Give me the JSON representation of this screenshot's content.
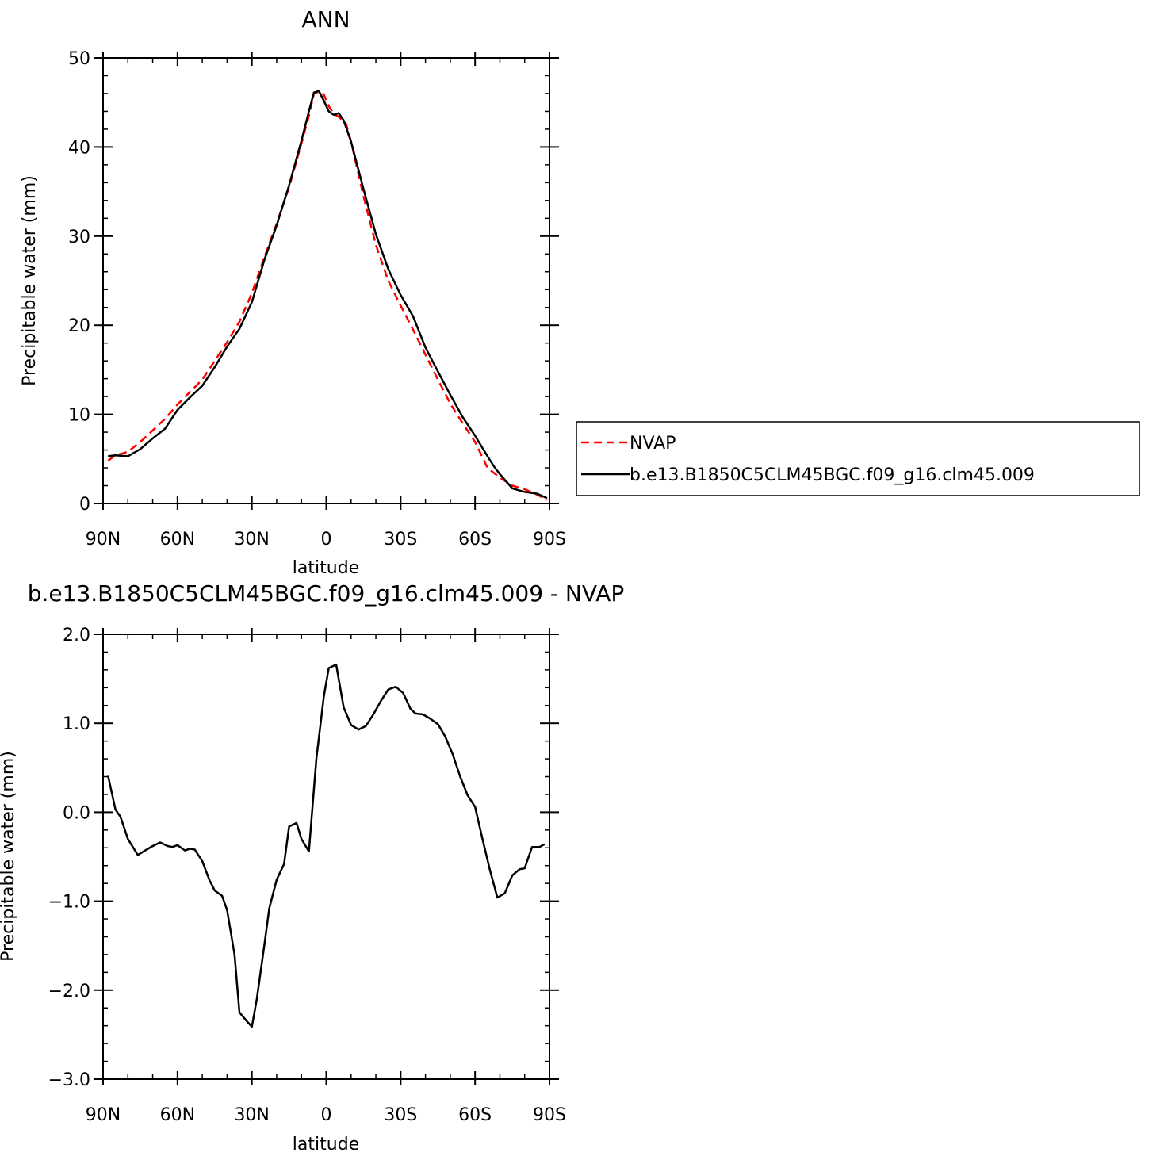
{
  "chart_data": [
    {
      "type": "line",
      "title": "ANN",
      "xlabel": "latitude",
      "ylabel": "Precipitable water (mm)",
      "xlim": [
        90,
        -90
      ],
      "ylim": [
        0,
        50
      ],
      "x_tick_labels": [
        "90N",
        "60N",
        "30N",
        "0",
        "30S",
        "60S",
        "90S"
      ],
      "x_tick_values": [
        90,
        60,
        30,
        0,
        -30,
        -60,
        -90
      ],
      "y_tick_labels": [
        "0",
        "10",
        "20",
        "30",
        "40",
        "50"
      ],
      "y_tick_values": [
        0,
        10,
        20,
        30,
        40,
        50
      ],
      "legend": {
        "placement": "right",
        "entries": [
          {
            "label": "NVAP",
            "style": "dashed",
            "color": "#ff0000"
          },
          {
            "label": "b.e13.B1850C5CLM45BGC.f09_g16.clm45.009",
            "style": "solid",
            "color": "#000000"
          }
        ]
      },
      "series": [
        {
          "name": "NVAP",
          "color": "#ff0000",
          "style": "dashed",
          "x": [
            88,
            85,
            80,
            75,
            70,
            65,
            60,
            55,
            50,
            45,
            40,
            35,
            30,
            25,
            20,
            15,
            10,
            7,
            5,
            3,
            1,
            -1,
            -3,
            -5,
            -8,
            -10,
            -15,
            -20,
            -25,
            -30,
            -35,
            -40,
            -45,
            -50,
            -55,
            -60,
            -65,
            -70,
            -75,
            -80,
            -85,
            -89
          ],
          "y": [
            4.8,
            5.4,
            5.8,
            6.9,
            8.2,
            9.5,
            11.1,
            12.5,
            13.9,
            16.0,
            18.1,
            20.4,
            23.6,
            27.6,
            31.4,
            35.5,
            40.4,
            43.5,
            46.0,
            46.2,
            45.9,
            44.6,
            43.7,
            43.4,
            42.6,
            40.6,
            34.5,
            29.0,
            25.0,
            22.2,
            19.5,
            16.7,
            13.9,
            11.2,
            9.0,
            6.9,
            4.0,
            2.9,
            2.0,
            1.6,
            1.0,
            0.4
          ]
        },
        {
          "name": "b.e13.B1850C5CLM45BGC.f09_g16.clm45.009",
          "color": "#000000",
          "style": "solid",
          "x": [
            88,
            85,
            80,
            75,
            70,
            65,
            60,
            55,
            50,
            45,
            40,
            35,
            30,
            25,
            20,
            15,
            10,
            7,
            5,
            3,
            1,
            -1,
            -3,
            -5,
            -7,
            -10,
            -15,
            -20,
            -25,
            -30,
            -35,
            -40,
            -45,
            -50,
            -55,
            -60,
            -65,
            -68,
            -70,
            -75,
            -80,
            -85,
            -89
          ],
          "y": [
            5.3,
            5.4,
            5.3,
            6.1,
            7.3,
            8.4,
            10.5,
            11.9,
            13.2,
            15.3,
            17.6,
            19.6,
            22.6,
            27.3,
            31.2,
            35.7,
            40.7,
            44.0,
            46.1,
            46.3,
            45.2,
            44.0,
            43.6,
            43.8,
            43.0,
            40.6,
            35.3,
            30.2,
            26.3,
            23.4,
            21.0,
            17.5,
            14.8,
            12.2,
            9.7,
            7.6,
            5.3,
            4.0,
            3.3,
            1.7,
            1.3,
            1.1,
            0.6
          ]
        }
      ]
    },
    {
      "type": "line",
      "title": "b.e13.B1850C5CLM45BGC.f09_g16.clm45.009 - NVAP",
      "xlabel": "latitude",
      "ylabel": "Precipitable water (mm)",
      "xlim": [
        90,
        -90
      ],
      "ylim": [
        -3.0,
        2.0
      ],
      "x_tick_labels": [
        "90N",
        "60N",
        "30N",
        "0",
        "30S",
        "60S",
        "90S"
      ],
      "x_tick_values": [
        90,
        60,
        30,
        0,
        -30,
        -60,
        -90
      ],
      "y_tick_labels": [
        "−3.0",
        "−2.0",
        "−1.0",
        "0.0",
        "1.0",
        "2.0"
      ],
      "y_tick_values": [
        -3.0,
        -2.0,
        -1.0,
        0.0,
        1.0,
        2.0
      ],
      "series": [
        {
          "color": "#000000",
          "style": "solid",
          "x": [
            88,
            85,
            83,
            80,
            76,
            73,
            70,
            67,
            64,
            62,
            60,
            57,
            55,
            53,
            50,
            47,
            45,
            42,
            40,
            37,
            35,
            32,
            30,
            28,
            25,
            23,
            20,
            17,
            15,
            12,
            10,
            7,
            4,
            1,
            -1,
            -4,
            -7,
            -10,
            -13,
            -16,
            -19,
            -22,
            -25,
            -28,
            -31,
            -34,
            -36,
            -39,
            -42,
            -45,
            -48,
            -51,
            -54,
            -57,
            -60,
            -63,
            -66,
            -69,
            -72,
            -75,
            -78,
            -80,
            -83,
            -86,
            -88
          ],
          "y": [
            0.41,
            0.03,
            -0.05,
            -0.3,
            -0.48,
            -0.43,
            -0.38,
            -0.34,
            -0.38,
            -0.39,
            -0.37,
            -0.43,
            -0.41,
            -0.42,
            -0.55,
            -0.77,
            -0.88,
            -0.94,
            -1.1,
            -1.6,
            -2.25,
            -2.35,
            -2.41,
            -2.1,
            -1.5,
            -1.08,
            -0.76,
            -0.58,
            -0.16,
            -0.12,
            -0.3,
            -0.44,
            0.6,
            1.3,
            1.62,
            1.66,
            1.18,
            0.98,
            0.93,
            0.97,
            1.1,
            1.25,
            1.38,
            1.41,
            1.34,
            1.16,
            1.11,
            1.1,
            1.05,
            0.99,
            0.85,
            0.65,
            0.4,
            0.19,
            0.06,
            -0.3,
            -0.65,
            -0.96,
            -0.91,
            -0.71,
            -0.64,
            -0.63,
            -0.39,
            -0.39,
            -0.36
          ]
        }
      ]
    }
  ]
}
